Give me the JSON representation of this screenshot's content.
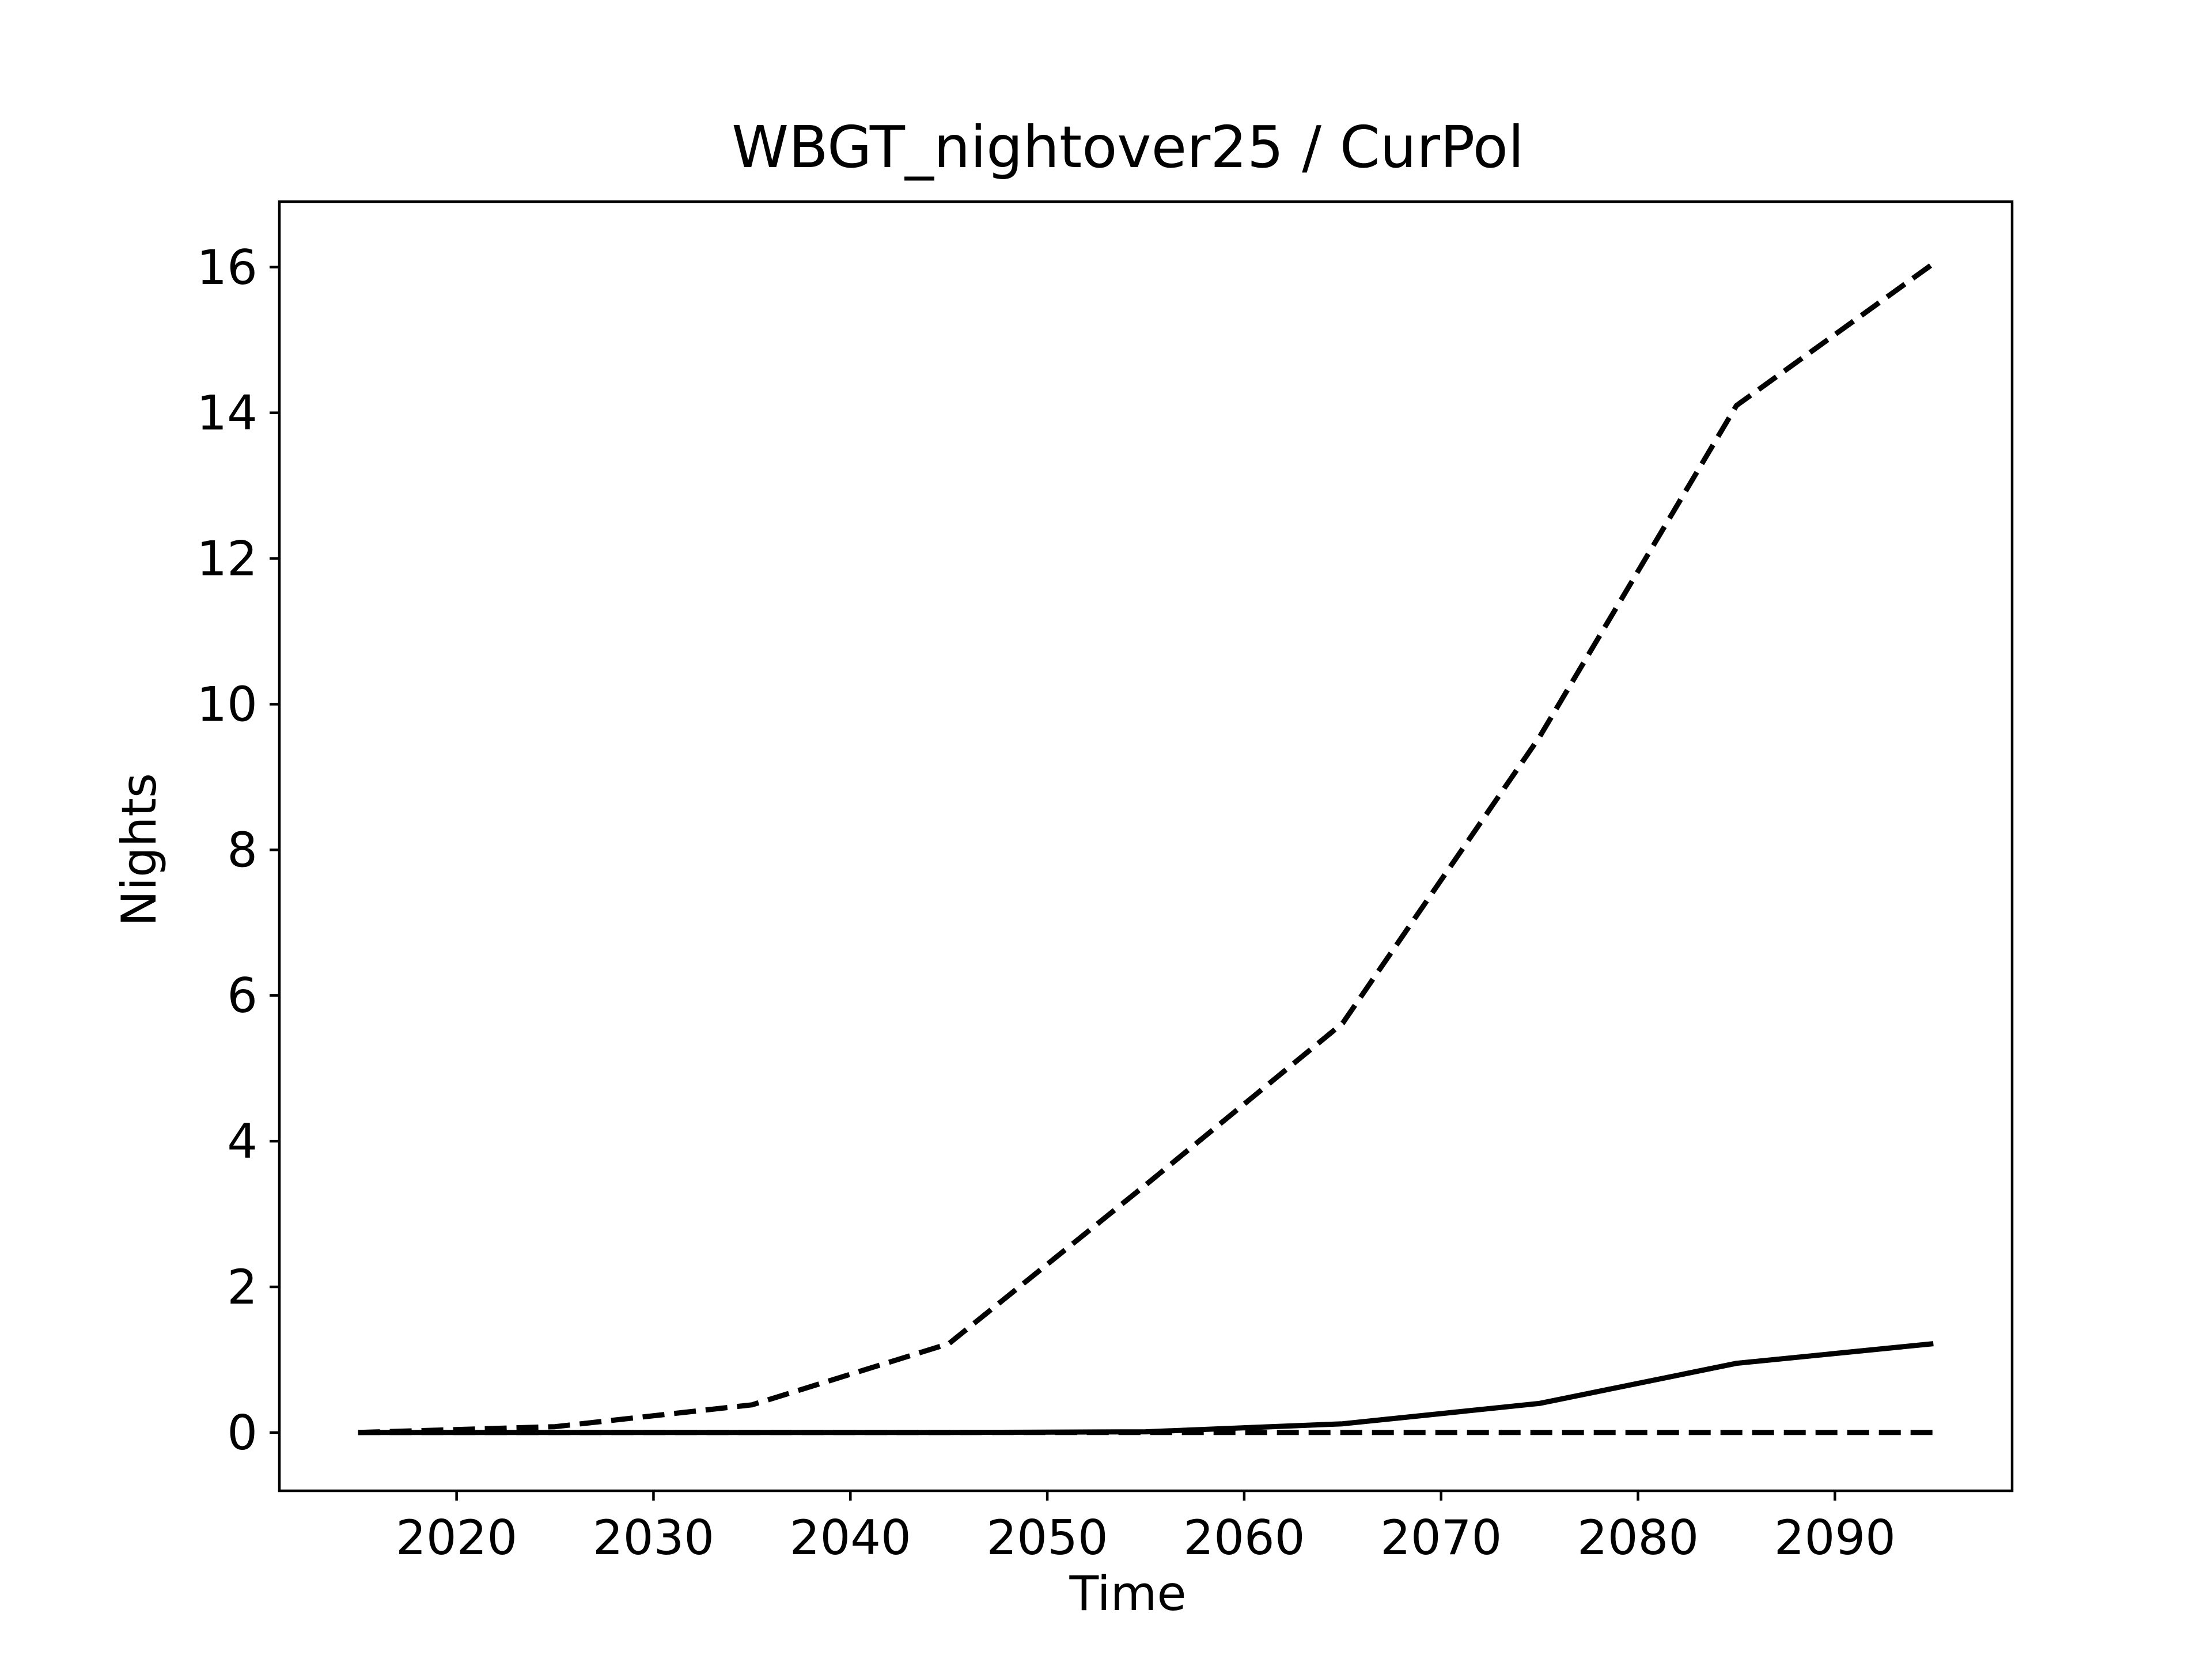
{
  "chart_data": {
    "type": "line",
    "title": "WBGT_nightover25 / CurPol",
    "xlabel": "Time",
    "ylabel": "Nights",
    "xlim": [
      2011,
      2099
    ],
    "ylim": [
      -0.8,
      16.9
    ],
    "xticks": [
      2020,
      2030,
      2040,
      2050,
      2060,
      2070,
      2080,
      2090
    ],
    "yticks": [
      0,
      2,
      4,
      6,
      8,
      10,
      12,
      14,
      16
    ],
    "grid": false,
    "legend": false,
    "x": [
      2015,
      2025,
      2035,
      2045,
      2055,
      2065,
      2075,
      2085,
      2095
    ],
    "series": [
      {
        "style": "dashed",
        "color": "#000000",
        "values": [
          0.0,
          0.08,
          0.38,
          1.22,
          3.4,
          5.62,
          9.55,
          14.1,
          16.05
        ]
      },
      {
        "style": "solid",
        "color": "#000000",
        "values": [
          0.0,
          0.0,
          0.0,
          0.0,
          0.01,
          0.12,
          0.4,
          0.95,
          1.22
        ]
      },
      {
        "style": "dashed",
        "color": "#000000",
        "values": [
          0.0,
          0.0,
          0.0,
          0.0,
          0.0,
          0.0,
          0.0,
          0.0,
          0.0
        ]
      }
    ]
  }
}
